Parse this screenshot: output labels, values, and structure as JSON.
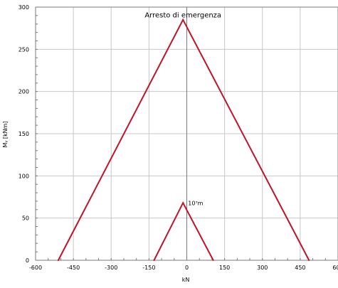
{
  "chart_data": {
    "type": "line",
    "title": "",
    "xlabel": "kN",
    "ylabel": "Mᵧ [kNm]",
    "xlim": [
      -600,
      600
    ],
    "ylim": [
      0,
      300
    ],
    "x_ticks": [
      -600,
      -450,
      -300,
      -150,
      0,
      150,
      300,
      450,
      600
    ],
    "x_tick_labels": [
      "-600",
      "-450",
      "-300",
      "-150",
      "0",
      "150",
      "300",
      "450",
      "600"
    ],
    "y_ticks": [
      0,
      50,
      100,
      150,
      200,
      250,
      300
    ],
    "y_tick_labels": [
      "0",
      "50",
      "100",
      "150",
      "200",
      "250",
      "300"
    ],
    "grid": true,
    "series": [
      {
        "name": "",
        "color": "#c0142b",
        "points": [
          [
            -510,
            0
          ],
          [
            -15,
            285
          ],
          [
            485,
            0
          ]
        ]
      },
      {
        "name": "",
        "color": "#c0142b",
        "points": [
          [
            -130,
            0
          ],
          [
            -15,
            68
          ],
          [
            105,
            0
          ]
        ]
      }
    ],
    "annotations": [
      {
        "text": "Arresto di emergenza",
        "x": -15,
        "y": 287
      },
      {
        "text": "10⁷m",
        "x": 5,
        "y": 68
      }
    ]
  }
}
